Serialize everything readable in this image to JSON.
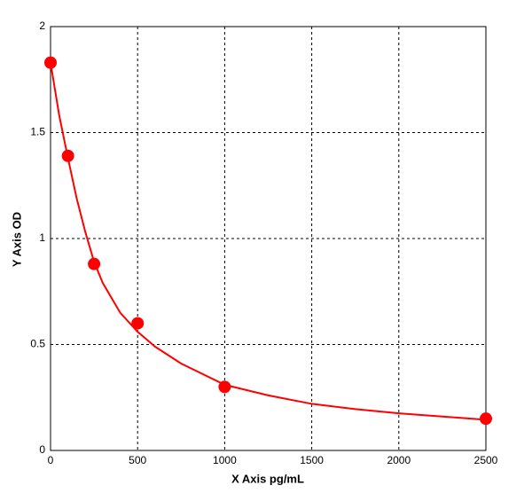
{
  "chart_data": {
    "type": "scatter",
    "x_label": "X Axis pg/mL",
    "y_label": "Y Axis OD",
    "xlim": [
      0,
      2500
    ],
    "xticks": [
      0,
      500,
      1000,
      1500,
      2000,
      2500
    ],
    "ylim": [
      0,
      2
    ],
    "yticks": [
      0,
      0.5,
      1,
      1.5,
      2
    ],
    "grid": true,
    "series": [
      {
        "style": "line",
        "color": "#ff0000",
        "x": [
          0,
          50,
          100,
          150,
          200,
          250,
          300,
          400,
          500,
          600,
          750,
          1000,
          1250,
          1500,
          1750,
          2000,
          2250,
          2500
        ],
        "values": [
          1.83,
          1.58,
          1.38,
          1.19,
          1.03,
          0.89,
          0.79,
          0.65,
          0.56,
          0.49,
          0.41,
          0.31,
          0.26,
          0.22,
          0.195,
          0.175,
          0.16,
          0.145
        ]
      },
      {
        "style": "markers",
        "color": "#ff0000",
        "x": [
          0,
          100,
          250,
          500,
          1000,
          2500
        ],
        "values": [
          1.83,
          1.39,
          0.88,
          0.6,
          0.3,
          0.15
        ]
      }
    ]
  }
}
